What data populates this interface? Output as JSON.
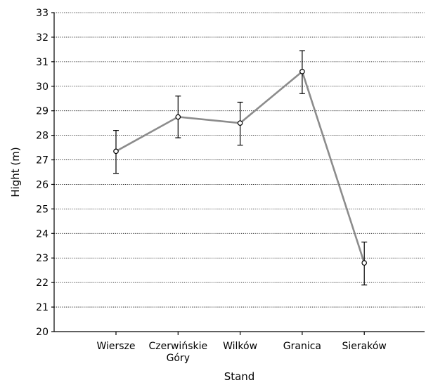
{
  "chart_data": {
    "type": "line",
    "categories": [
      [
        "Wiersze"
      ],
      [
        "Czerwińskie",
        "Góry"
      ],
      [
        "Wilków"
      ],
      [
        "Granica"
      ],
      [
        "Sieraków"
      ]
    ],
    "series": [
      {
        "values": [
          27.35,
          28.75,
          28.5,
          30.6,
          22.8
        ],
        "error_bars": [
          [
            26.45,
            28.2
          ],
          [
            27.9,
            29.6
          ],
          [
            27.6,
            29.35
          ],
          [
            29.7,
            31.45
          ],
          [
            21.9,
            23.65
          ]
        ]
      }
    ],
    "xlabel": "Stand",
    "ylabel": "Hight (m)",
    "ylim": [
      20,
      33
    ],
    "yticks": [
      "20",
      "21",
      "22",
      "23",
      "24",
      "25",
      "26",
      "27",
      "28",
      "29",
      "30",
      "31",
      "32",
      "33"
    ],
    "grid": "horizontal dotted",
    "line_color": "#8c8c8c",
    "marker": "open circle"
  }
}
